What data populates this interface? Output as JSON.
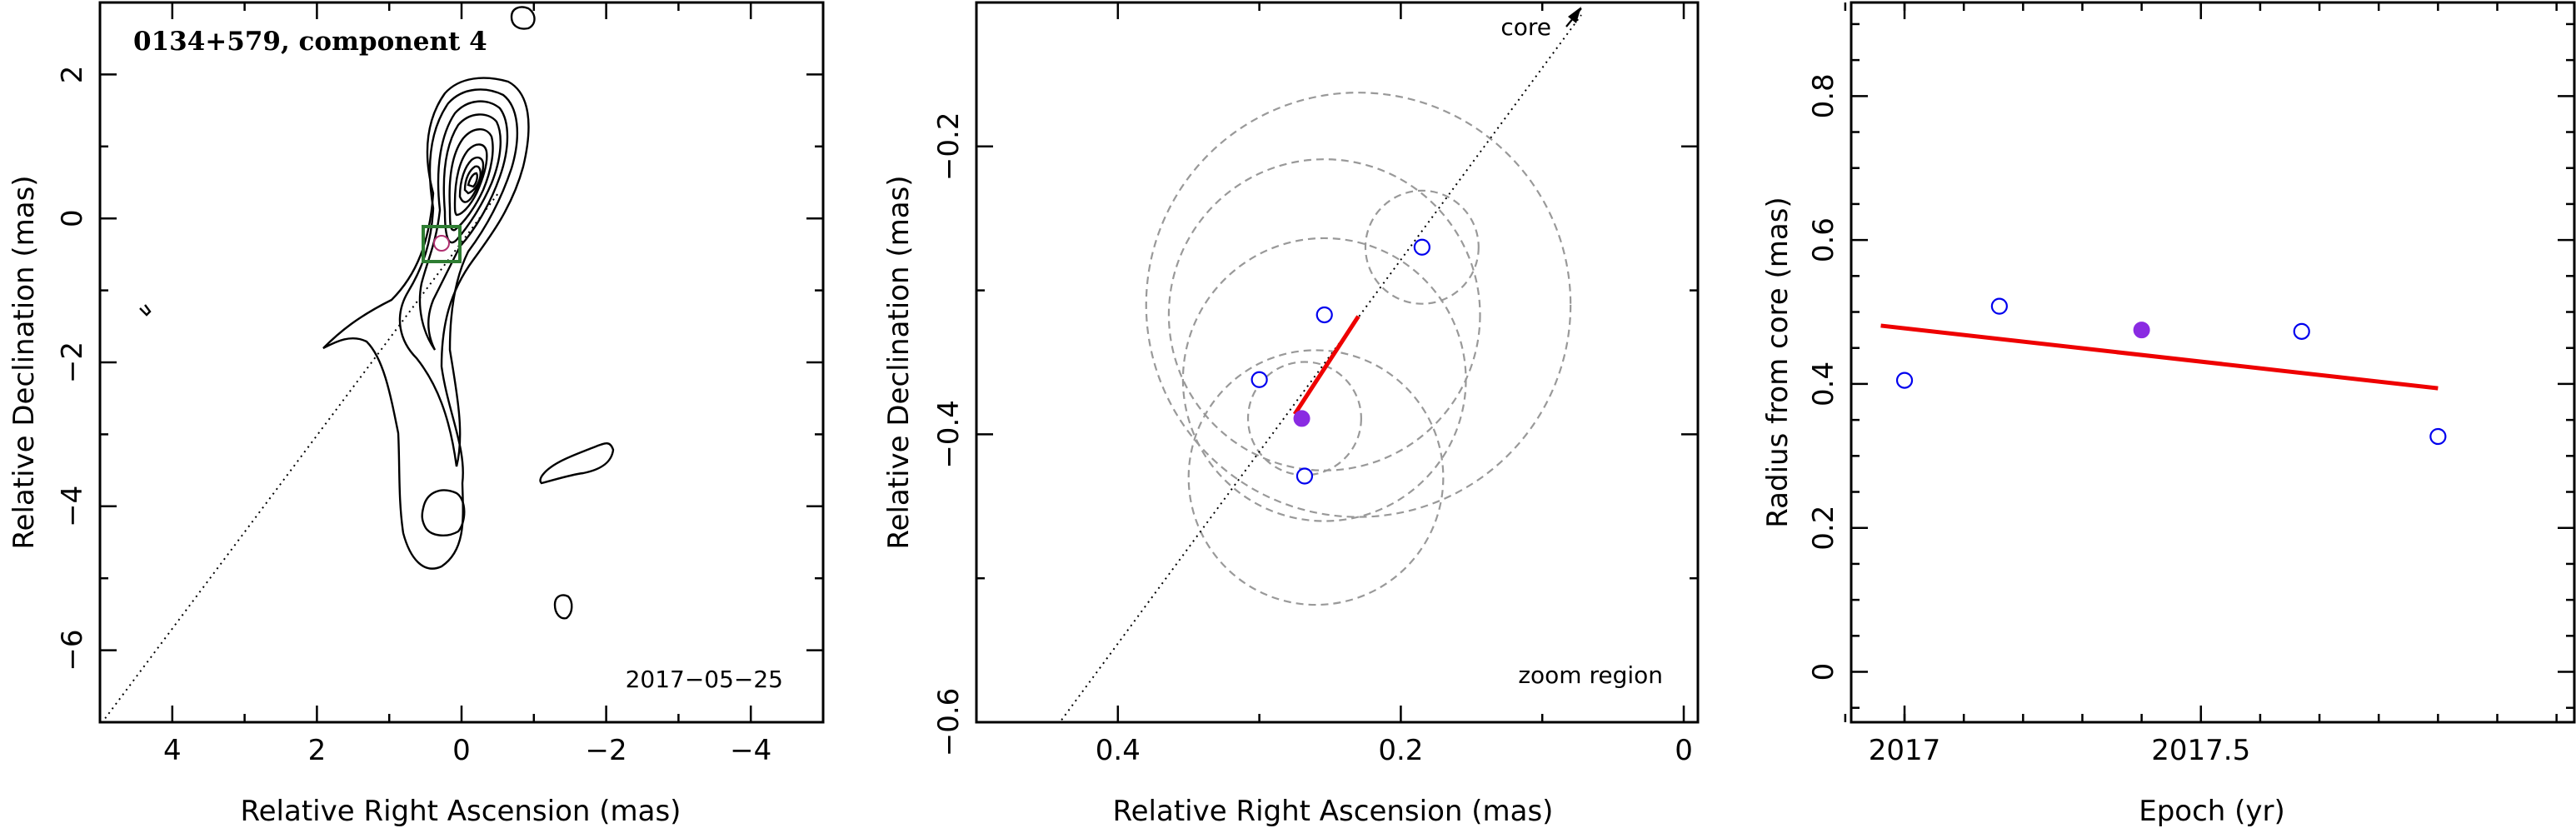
{
  "figure": {
    "panel1_title": "0134+579, component 4",
    "panel1_date": "2017−05−25",
    "panel2_core_label": "core",
    "panel2_zoom_label": "zoom region"
  },
  "colors": {
    "contour": "#000000",
    "trajectory": "#000000",
    "box": "#2e7d32",
    "component_open": "#0000ee",
    "component_filled": "#8a2be2",
    "fit": "#ee0000",
    "error_circles": "#999999"
  },
  "chart_data": [
    {
      "type": "contour",
      "xlabel": "Relative Right Ascension (mas)",
      "ylabel": "Relative Declination (mas)",
      "xlim": [
        5,
        -5
      ],
      "ylim": [
        -7,
        3
      ],
      "xticks": [
        "4",
        "2",
        "0",
        "−2",
        "−4"
      ],
      "yticks": [
        "2",
        "0",
        "−2",
        "−4",
        "−6"
      ],
      "xtick_values": [
        4,
        2,
        0,
        -2,
        -4
      ],
      "ytick_values": [
        2,
        0,
        -2,
        -4,
        -6
      ],
      "component_position": [
        0.25,
        -0.35
      ],
      "trajectory_direction": "through core toward lower-left"
    },
    {
      "type": "scatter",
      "xlabel": "Relative Right Ascension (mas)",
      "ylabel": "Relative Declination (mas)",
      "xlim": [
        0.5,
        -0.01
      ],
      "ylim": [
        -0.6,
        -0.1
      ],
      "xticks": [
        "0.4",
        "0.2",
        "0"
      ],
      "yticks": [
        "−0.2",
        "−0.4",
        "−0.6"
      ],
      "xtick_values": [
        0.4,
        0.2,
        0
      ],
      "ytick_values": [
        -0.2,
        -0.4,
        -0.6
      ],
      "points_open": [
        [
          0.3,
          -0.362
        ],
        [
          0.254,
          -0.317
        ],
        [
          0.185,
          -0.27
        ],
        [
          0.268,
          -0.429
        ]
      ],
      "point_filled": [
        0.27,
        -0.389
      ],
      "error_circles": [
        {
          "center": [
            0.185,
            -0.27
          ],
          "radius": 0.04
        },
        {
          "center": [
            0.254,
            -0.317
          ],
          "radius": 0.11
        },
        {
          "center": [
            0.268,
            -0.389
          ],
          "radius": 0.04
        },
        {
          "center": [
            0.254,
            -0.362
          ],
          "radius": 0.1
        },
        {
          "center": [
            0.26,
            -0.43
          ],
          "radius": 0.09
        },
        {
          "center": [
            0.23,
            -0.31
          ],
          "radius": 0.15
        }
      ],
      "fit_segment": [
        [
          0.275,
          -0.386
        ],
        [
          0.23,
          -0.318
        ]
      ]
    },
    {
      "type": "scatter",
      "xlabel": "Epoch (yr)",
      "ylabel": "Radius from core (mas)",
      "xlim": [
        2016.91,
        2018.13
      ],
      "ylim": [
        -0.07,
        0.93
      ],
      "xticks": [
        "2017",
        "2017.5"
      ],
      "yticks": [
        "0",
        "0.2",
        "0.4",
        "0.6",
        "0.8"
      ],
      "xtick_values": [
        2017.0,
        2017.5
      ],
      "ytick_values": [
        0,
        0.2,
        0.4,
        0.6,
        0.8
      ],
      "points_open": [
        {
          "x": 2017.0,
          "y": 0.405
        },
        {
          "x": 2017.16,
          "y": 0.508
        },
        {
          "x": 2017.67,
          "y": 0.473
        },
        {
          "x": 2017.9,
          "y": 0.327
        }
      ],
      "point_filled": {
        "x": 2017.4,
        "y": 0.475
      },
      "fit_line": {
        "x": [
          2016.96,
          2017.9
        ],
        "y": [
          0.481,
          0.394
        ]
      }
    }
  ]
}
